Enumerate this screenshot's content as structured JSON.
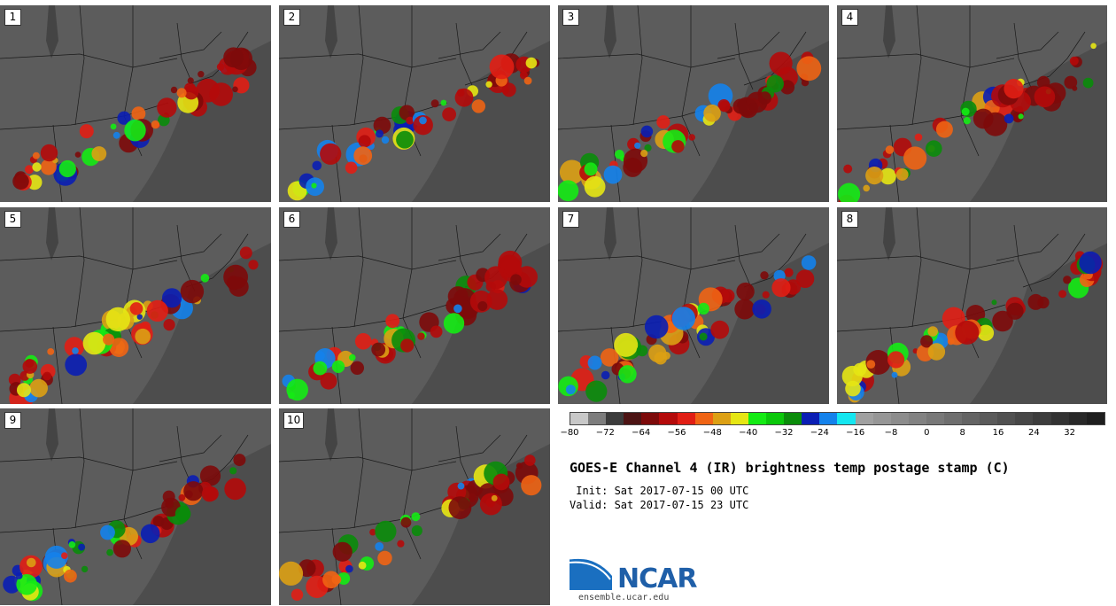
{
  "panels": [
    {
      "label": "1"
    },
    {
      "label": "2"
    },
    {
      "label": "3"
    },
    {
      "label": "4"
    },
    {
      "label": "5"
    },
    {
      "label": "6"
    },
    {
      "label": "7"
    },
    {
      "label": "8"
    },
    {
      "label": "9"
    },
    {
      "label": "10"
    }
  ],
  "colorbar": {
    "colors": [
      "#c8c8c8",
      "#7d7d7d",
      "#3c3c3c",
      "#4d1414",
      "#7d0a0a",
      "#b40a0a",
      "#e11e14",
      "#f06414",
      "#dca014",
      "#e6e614",
      "#14eb14",
      "#0ac80a",
      "#0a8c0a",
      "#0a1eb4",
      "#1482eb",
      "#14e6f0",
      "#a0a0a0",
      "#969696",
      "#8c8c8c",
      "#828282",
      "#787878",
      "#6e6e6e",
      "#646464",
      "#5a5a5a",
      "#505050",
      "#464646",
      "#3c3c3c",
      "#323232",
      "#282828",
      "#1e1e1e"
    ],
    "ticks": [
      "−80",
      "−72",
      "−64",
      "−56",
      "−48",
      "−40",
      "−32",
      "−24",
      "−16",
      "−8",
      "0",
      "8",
      "16",
      "24",
      "32"
    ],
    "min": -80,
    "max": 40
  },
  "title": "GOES-E Channel 4 (IR) brightness temp postage stamp (C)",
  "init": " Init: Sat 2017-07-15 00 UTC",
  "valid": "Valid: Sat 2017-07-15 23 UTC",
  "logo_text": "NCAR",
  "url": "ensemble.ucar.edu"
}
